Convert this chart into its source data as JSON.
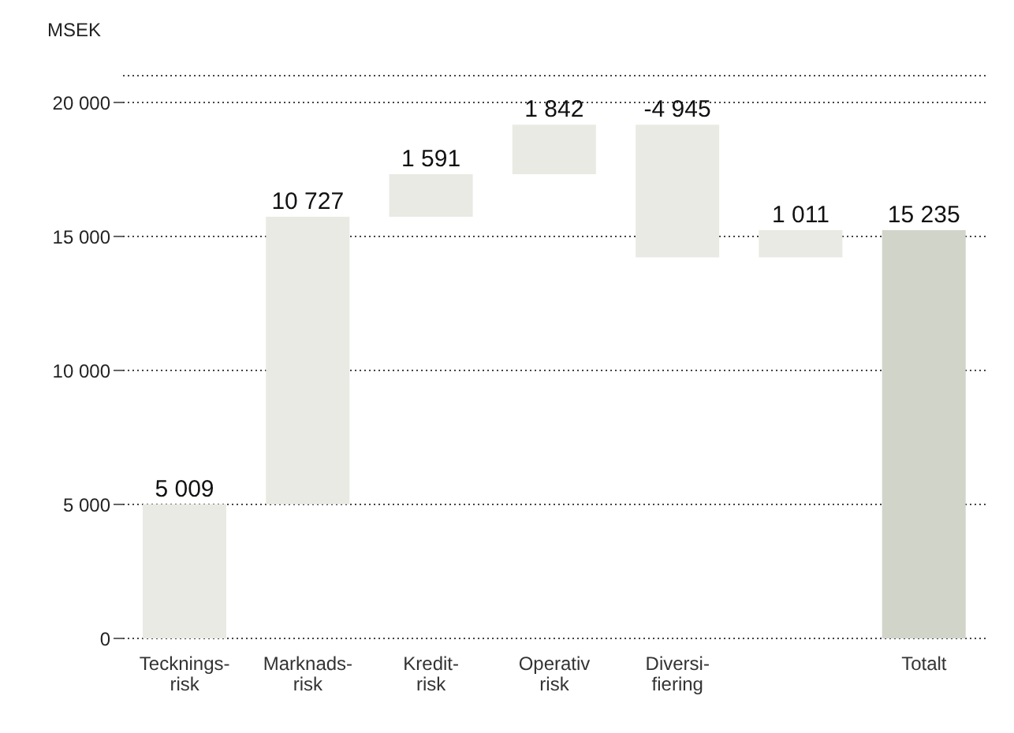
{
  "chart_data": {
    "type": "bar",
    "ylabel": "MSEK",
    "categories": [
      "Tecknings-risk",
      "Marknads-risk",
      "Kredit-risk",
      "Operativ risk",
      "Diversi-fiering",
      null,
      "Totalt"
    ],
    "values": [
      5009,
      10727,
      1591,
      1842,
      -4945,
      1011,
      15235
    ],
    "base": [
      0,
      5009,
      15736,
      17327,
      19169,
      14224,
      0
    ],
    "colors": [
      "#e8eae3",
      "#e8eae3",
      "#e8eae3",
      "#e8eae3",
      "#e8eae3",
      "#e8eae3",
      "#d1d4c9"
    ],
    "value_labels": [
      "5 009",
      "10 727",
      "1 591",
      "1 842",
      "-4 945",
      "1 011",
      "15 235"
    ],
    "ylim": [
      0,
      21000
    ],
    "yticks": [
      {
        "value": 0,
        "label": "0"
      },
      {
        "value": 5000,
        "label": "5 000"
      },
      {
        "value": 10000,
        "label": "10 000"
      },
      {
        "value": 15000,
        "label": "15 000"
      },
      {
        "value": 20000,
        "label": "20 000"
      }
    ],
    "grid": "y"
  }
}
